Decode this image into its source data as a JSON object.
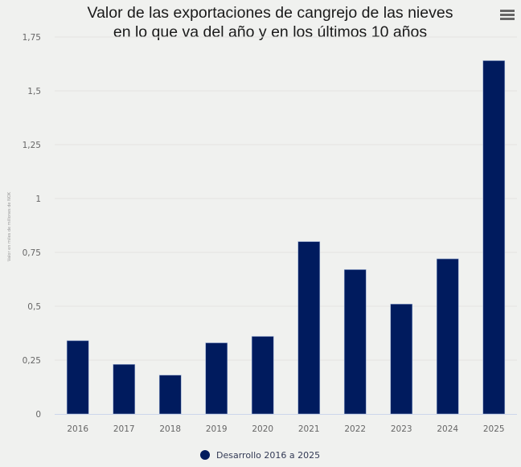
{
  "chart_data": {
    "type": "bar",
    "title": [
      "Valor de las exportaciones de cangrejo de las nieves",
      "en lo que va del año y en los últimos 10 años"
    ],
    "xlabel": "",
    "ylabel": "Valor en miles de millones de NOK",
    "categories": [
      "2016",
      "2017",
      "2018",
      "2019",
      "2020",
      "2021",
      "2022",
      "2023",
      "2024",
      "2025"
    ],
    "series": [
      {
        "name": "Desarrollo 2016 a 2025",
        "color": "#001b5e",
        "values": [
          0.34,
          0.23,
          0.18,
          0.33,
          0.36,
          0.8,
          0.67,
          0.51,
          0.72,
          1.64
        ]
      }
    ],
    "ylim": [
      0,
      1.75
    ],
    "yticks": [
      0,
      0.25,
      0.5,
      0.75,
      1,
      1.25,
      1.5,
      1.75
    ],
    "ytick_labels": [
      "0",
      "0,25",
      "0,5",
      "0,75",
      "1",
      "1,25",
      "1,5",
      "1,75"
    ],
    "grid": true,
    "legend": "bottom-center"
  },
  "menu": {
    "icon": "hamburger-menu-icon"
  },
  "colors": {
    "background": "#f0f1ef",
    "bar": "#001b5e",
    "grid": "#e3e4e2",
    "axis": "#ccd6eb"
  }
}
